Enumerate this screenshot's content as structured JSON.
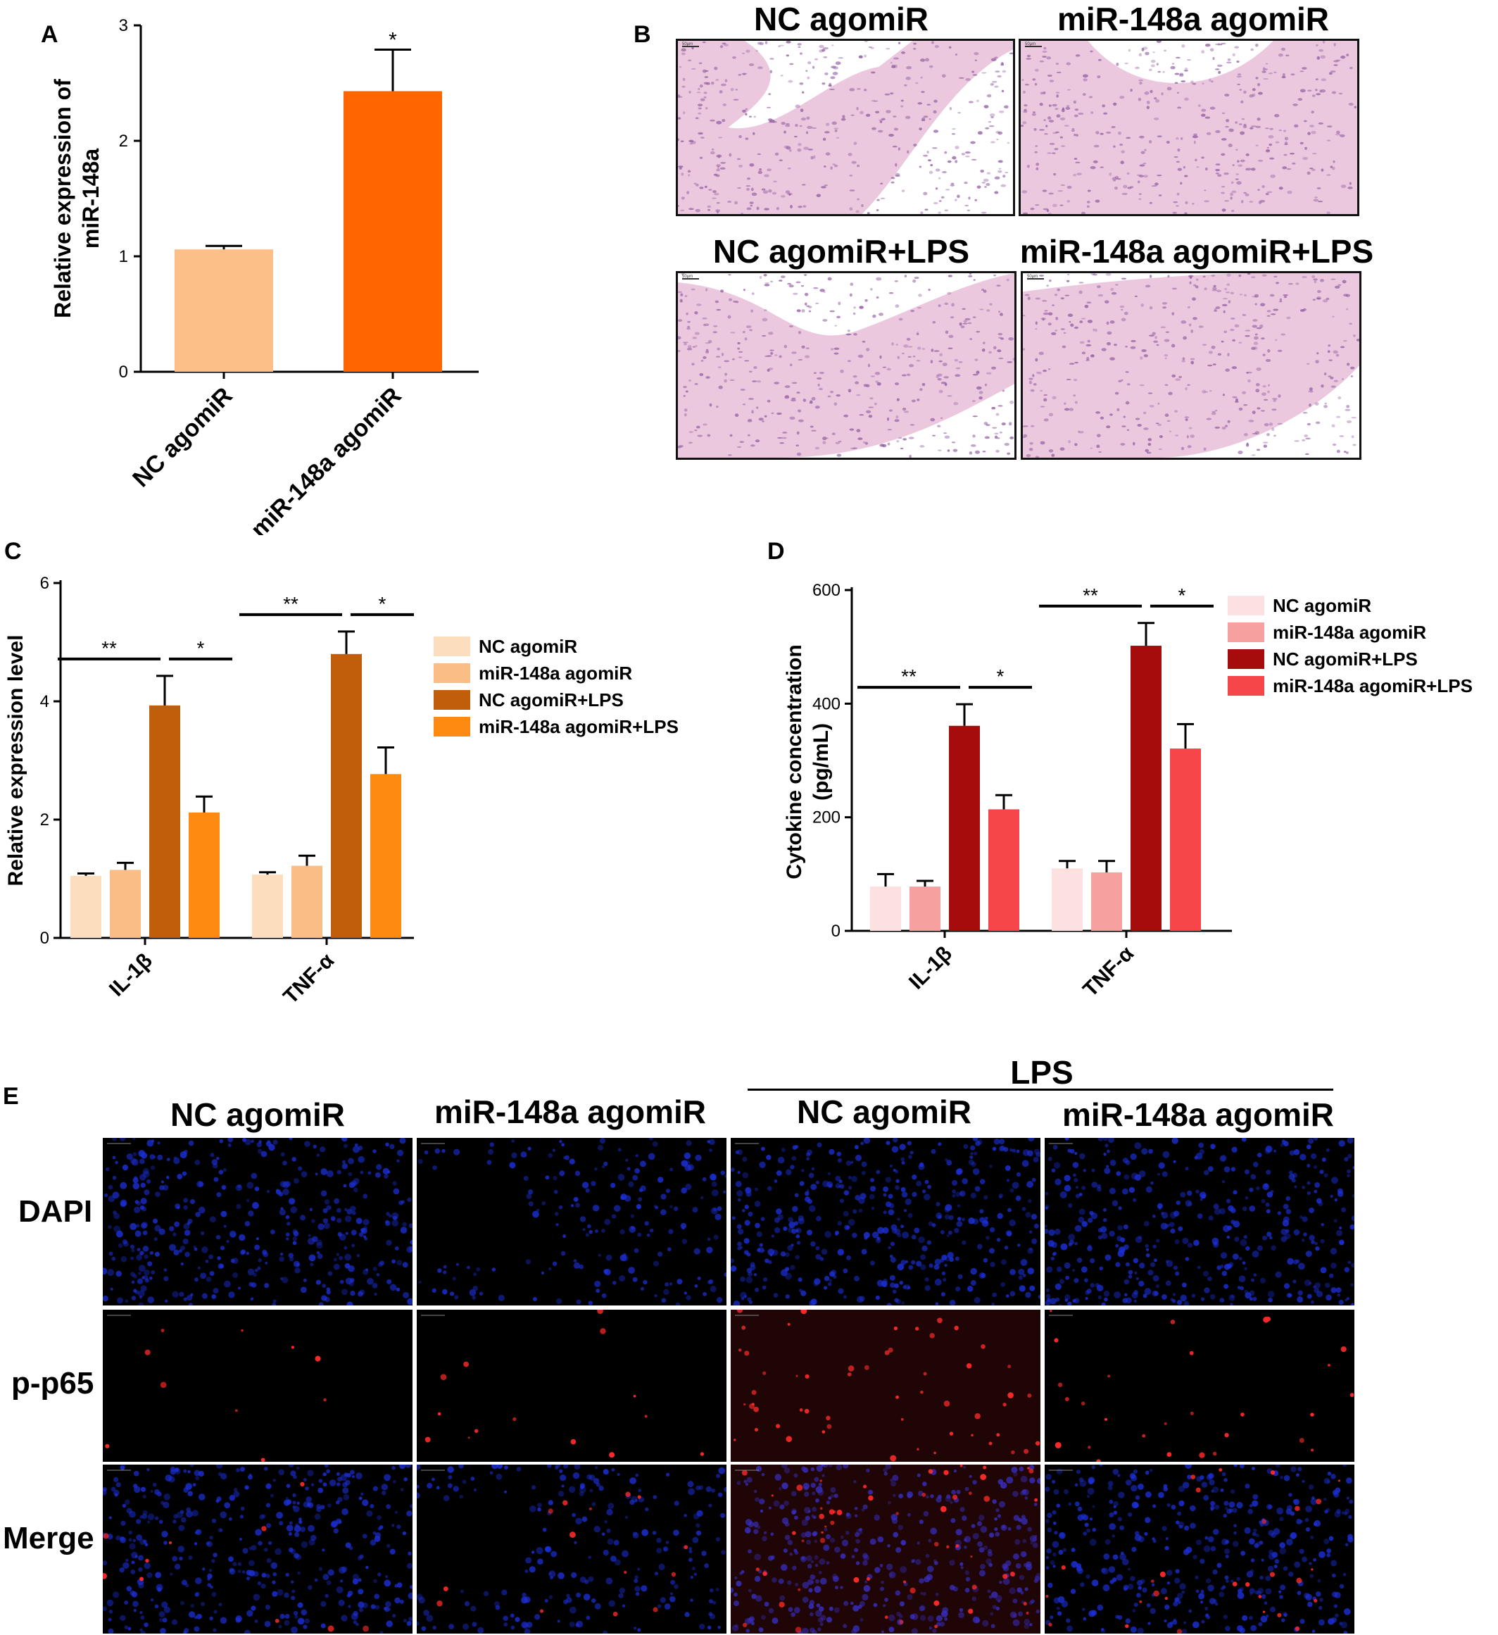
{
  "panels": {
    "a": "A",
    "b": "B",
    "c": "C",
    "d": "D",
    "e": "E"
  },
  "chart_data": [
    {
      "panel": "A",
      "type": "bar",
      "categories": [
        "NC agomiR",
        "miR-148a agomiR"
      ],
      "values": [
        1.06,
        2.43
      ],
      "errors": [
        0.03,
        0.36
      ],
      "colors": [
        "#FBBF87",
        "#FF6600"
      ],
      "ylabel": "Relative expression of miR-148a",
      "ylabel_lines": [
        "Relative expression of",
        "miR-148a"
      ],
      "ylim": [
        0,
        3
      ],
      "yticks": [
        "0",
        "1",
        "2",
        "3"
      ],
      "significance": [
        {
          "label": "*",
          "over": 1
        }
      ]
    },
    {
      "panel": "C",
      "type": "bar",
      "categories": [
        "IL-1β",
        "TNF-α"
      ],
      "series": [
        {
          "name": "NC agomiR",
          "values": [
            1.05,
            1.07
          ],
          "errors": [
            0.04,
            0.04
          ],
          "color": "#FCDDBD"
        },
        {
          "name": "miR-148a agomiR",
          "values": [
            1.15,
            1.22
          ],
          "errors": [
            0.12,
            0.17
          ],
          "color": "#F9BD85"
        },
        {
          "name": "NC agomiR+LPS",
          "values": [
            3.93,
            4.8
          ],
          "errors": [
            0.5,
            0.38
          ],
          "color": "#C05E0C"
        },
        {
          "name": "miR-148a agomiR+LPS",
          "values": [
            2.12,
            2.77
          ],
          "errors": [
            0.27,
            0.45
          ],
          "color": "#FF8A12"
        }
      ],
      "ylabel": "Relative expression level",
      "ylim": [
        0,
        6
      ],
      "yticks": [
        "0",
        "2",
        "4",
        "6"
      ],
      "significance": [
        {
          "group": 0,
          "label": "**",
          "from": 0,
          "to": 2
        },
        {
          "group": 0,
          "label": "*",
          "from": 2,
          "to": 3
        },
        {
          "group": 1,
          "label": "**",
          "from": 0,
          "to": 2
        },
        {
          "group": 1,
          "label": "*",
          "from": 2,
          "to": 3
        }
      ],
      "legend_position": "right"
    },
    {
      "panel": "D",
      "type": "bar",
      "categories": [
        "IL-1β",
        "TNF-α"
      ],
      "series": [
        {
          "name": "NC agomiR",
          "values": [
            78,
            110
          ],
          "errors": [
            22,
            13
          ],
          "color": "#FDE0E0"
        },
        {
          "name": "miR-148a agomiR",
          "values": [
            78,
            103
          ],
          "errors": [
            10,
            20
          ],
          "color": "#F7A0A0"
        },
        {
          "name": "NC agomiR+LPS",
          "values": [
            361,
            502
          ],
          "errors": [
            38,
            40
          ],
          "color": "#A50D0D"
        },
        {
          "name": "miR-148a agomiR+LPS",
          "values": [
            214,
            321
          ],
          "errors": [
            25,
            43
          ],
          "color": "#F7464A"
        }
      ],
      "ylabel": "Cytokine concentration (pg/mL)",
      "ylabel_lines": [
        "Cytokine concentration",
        "(pg/mL)"
      ],
      "ylim": [
        0,
        600
      ],
      "yticks": [
        "0",
        "200",
        "400",
        "600"
      ],
      "significance": [
        {
          "group": 0,
          "label": "**",
          "from": 0,
          "to": 2
        },
        {
          "group": 0,
          "label": "*",
          "from": 2,
          "to": 3
        },
        {
          "group": 1,
          "label": "**",
          "from": 0,
          "to": 2
        },
        {
          "group": 1,
          "label": "*",
          "from": 2,
          "to": 3
        }
      ],
      "legend_position": "right"
    }
  ],
  "histology": {
    "titles": [
      "NC agomiR",
      "miR-148a agomiR",
      "NC agomiR+LPS",
      "miR-148a agomiR+LPS"
    ],
    "scale_bar": "50μm",
    "colors": {
      "stroma": "#E8BCD8",
      "nuclei": "#7A3C8E",
      "lumen": "#FFFFFF"
    }
  },
  "fluorescence": {
    "group_label": "LPS",
    "columns": [
      "NC agomiR",
      "miR-148a agomiR",
      "NC agomiR",
      "miR-148a agomiR"
    ],
    "rows": [
      "DAPI",
      "p-p65",
      "Merge"
    ],
    "colors": {
      "dapi": "#1C2FD8",
      "p65": "#FF2A2A",
      "background": "#000000"
    }
  }
}
